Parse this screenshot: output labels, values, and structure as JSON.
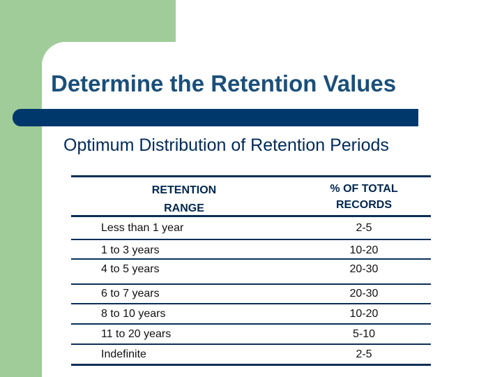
{
  "slide": {
    "title": "Determine the Retention Values",
    "subtitle": "Optimum Distribution of Retention Periods",
    "colors": {
      "accent_green": "#9fcc98",
      "title_blue": "#1a4f7a",
      "rule_navy": "#00386b"
    }
  },
  "table": {
    "headers": [
      "RETENTION\nRANGE",
      "% OF TOTAL\nRECORDS"
    ],
    "rows": [
      {
        "range": "Less than 1 year",
        "percent": "2-5"
      },
      {
        "range": "1 to 3 years",
        "percent": "10-20"
      },
      {
        "range": "4 to 5 years",
        "percent": "20-30"
      },
      {
        "range": "6 to 7 years",
        "percent": "20-30"
      },
      {
        "range": "8 to 10 years",
        "percent": "10-20"
      },
      {
        "range": "11 to 20 years",
        "percent": "5-10"
      },
      {
        "range": "Indefinite",
        "percent": "2-5"
      }
    ]
  }
}
